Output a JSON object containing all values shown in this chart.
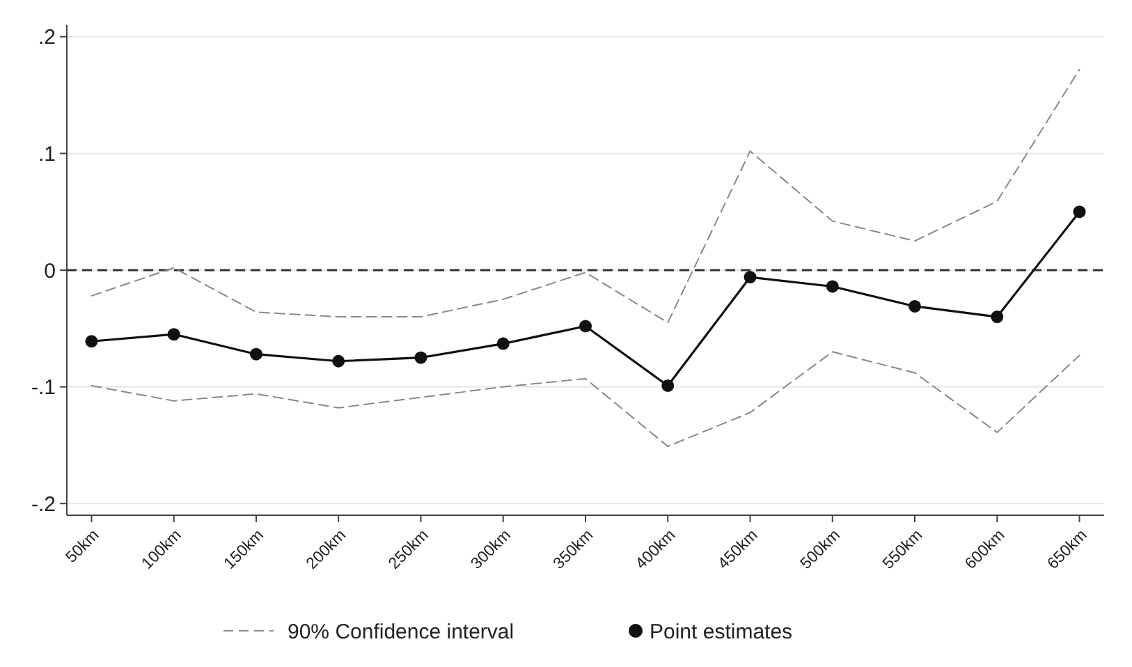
{
  "chart_data": {
    "type": "line",
    "categories": [
      "50km",
      "100km",
      "150km",
      "200km",
      "250km",
      "300km",
      "350km",
      "400km",
      "450km",
      "500km",
      "550km",
      "600km",
      "650km"
    ],
    "series": [
      {
        "name": "90% Confidence interval",
        "color": "#888888",
        "line_style": "dashed",
        "marker": "none",
        "values": [
          -0.022,
          0.002,
          -0.036,
          -0.04,
          -0.04,
          -0.025,
          -0.002,
          -0.045,
          0.102,
          0.042,
          0.025,
          0.059,
          0.172
        ]
      },
      {
        "color": "#888888",
        "line_style": "dashed",
        "marker": "none",
        "values": [
          -0.099,
          -0.112,
          -0.106,
          -0.118,
          -0.109,
          -0.1,
          -0.093,
          -0.151,
          -0.122,
          -0.07,
          -0.088,
          -0.139,
          -0.073
        ]
      },
      {
        "name": "Point estimates",
        "color": "#111111",
        "line_style": "solid",
        "marker": "circle",
        "values": [
          -0.061,
          -0.055,
          -0.072,
          -0.078,
          -0.075,
          -0.063,
          -0.048,
          -0.099,
          -0.006,
          -0.014,
          -0.031,
          -0.04,
          0.05
        ]
      }
    ],
    "ylim": [
      -0.21,
      0.21
    ],
    "yticks": [
      {
        "value": -0.2,
        "label": "-.2"
      },
      {
        "value": -0.1,
        "label": "-.1"
      },
      {
        "value": 0,
        "label": "0"
      },
      {
        "value": 0.1,
        "label": ".1"
      },
      {
        "value": 0.2,
        "label": ".2"
      }
    ],
    "grid": "y",
    "legend": "bottom",
    "ref_lines": [
      {
        "axis": "y",
        "value": 0,
        "color": "#333333",
        "line_style": "dashed"
      }
    ]
  }
}
